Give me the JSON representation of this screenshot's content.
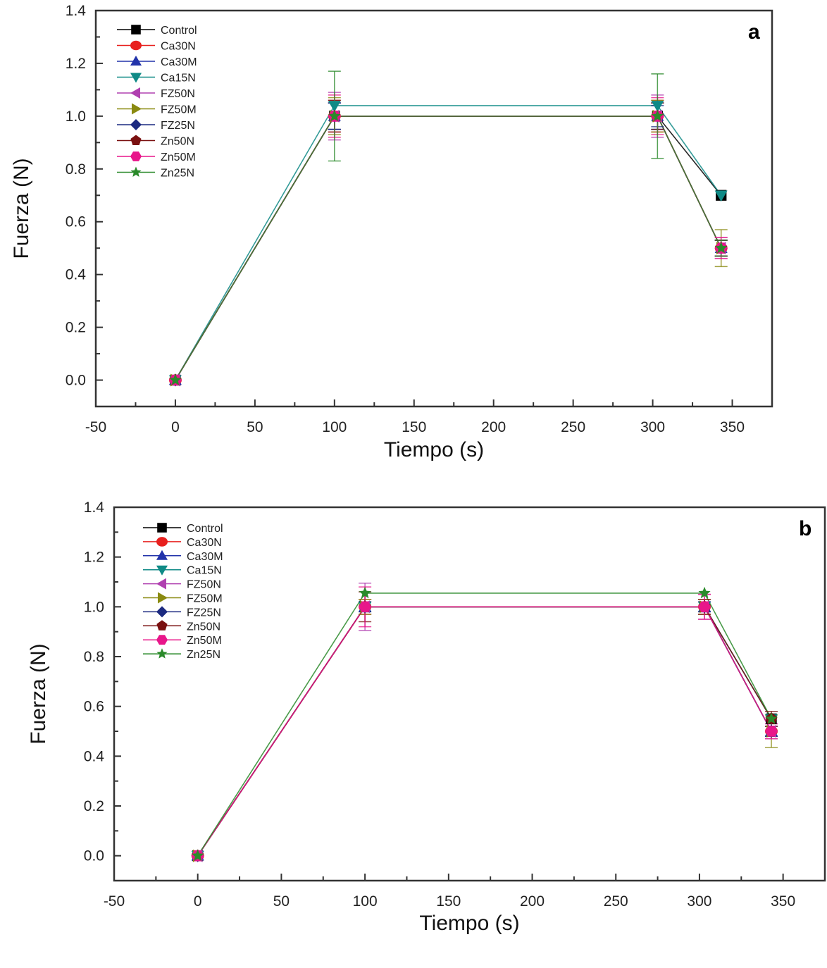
{
  "chart_data": [
    {
      "type": "line",
      "panel_label": "a",
      "title": "",
      "xlabel": "Tiempo (s)",
      "ylabel": "Fuerza (N)",
      "xlim": [
        -50,
        375
      ],
      "ylim": [
        -0.1,
        1.4
      ],
      "xticks": [
        -50,
        0,
        50,
        100,
        150,
        200,
        250,
        300,
        350
      ],
      "xtick_labels": [
        "-50",
        "0",
        "50",
        "100",
        "150",
        "200",
        "250",
        "300",
        "350"
      ],
      "yticks": [
        0.0,
        0.2,
        0.4,
        0.6,
        0.8,
        1.0,
        1.2,
        1.4
      ],
      "ytick_labels": [
        "0.0",
        "0.2",
        "0.4",
        "0.6",
        "0.8",
        "1.0",
        "1.2",
        "1.4"
      ],
      "grid": false,
      "legend_position": "top-left",
      "x": [
        0,
        100,
        303,
        343
      ],
      "series": [
        {
          "name": "Control",
          "color": "#000000",
          "marker": "square",
          "values": [
            0,
            1.0,
            1.0,
            0.7
          ],
          "errors": [
            0,
            0.05,
            0.05,
            0
          ]
        },
        {
          "name": "Ca30N",
          "color": "#e8201e",
          "marker": "circle",
          "values": [
            0,
            1.0,
            1.0,
            0.5
          ],
          "errors": [
            0,
            0.06,
            0.06,
            0.03
          ]
        },
        {
          "name": "Ca30M",
          "color": "#2233aa",
          "marker": "triangle-up",
          "values": [
            0,
            1.0,
            1.0,
            0.5
          ],
          "errors": [
            0,
            0.05,
            0.05,
            0.03
          ]
        },
        {
          "name": "Ca15N",
          "color": "#0f8a86",
          "marker": "triangle-down",
          "values": [
            0,
            1.04,
            1.04,
            0.7
          ],
          "errors": [
            0,
            0,
            0,
            0
          ]
        },
        {
          "name": "FZ50N",
          "color": "#b040b0",
          "marker": "triangle-left",
          "values": [
            0,
            1.0,
            1.0,
            0.5
          ],
          "errors": [
            0,
            0.09,
            0.08,
            0.04
          ]
        },
        {
          "name": "FZ50M",
          "color": "#8a8a10",
          "marker": "triangle-right",
          "values": [
            0,
            1.0,
            1.0,
            0.5
          ],
          "errors": [
            0,
            0.07,
            0.06,
            0.07
          ]
        },
        {
          "name": "FZ25N",
          "color": "#1c2a80",
          "marker": "diamond",
          "values": [
            0,
            1.0,
            1.0,
            0.5
          ],
          "errors": [
            0,
            0.05,
            0.04,
            0.03
          ]
        },
        {
          "name": "Zn50N",
          "color": "#7a1010",
          "marker": "pentagon",
          "values": [
            0,
            1.0,
            1.0,
            0.5
          ],
          "errors": [
            0,
            0.06,
            0.05,
            0.03
          ]
        },
        {
          "name": "Zn50M",
          "color": "#e8168a",
          "marker": "hexagon",
          "values": [
            0,
            1.0,
            1.0,
            0.5
          ],
          "errors": [
            0,
            0.08,
            0.07,
            0.04
          ]
        },
        {
          "name": "Zn25N",
          "color": "#2a8a2a",
          "marker": "star",
          "values": [
            0,
            1.0,
            1.0,
            0.5
          ],
          "errors": [
            0,
            0.17,
            0.16,
            0.03
          ]
        }
      ]
    },
    {
      "type": "line",
      "panel_label": "b",
      "title": "",
      "xlabel": "Tiempo (s)",
      "ylabel": "Fuerza (N)",
      "xlim": [
        -50,
        375
      ],
      "ylim": [
        -0.1,
        1.4
      ],
      "xticks": [
        -50,
        0,
        50,
        100,
        150,
        200,
        250,
        300,
        350
      ],
      "xtick_labels": [
        "-50",
        "0",
        "50",
        "100",
        "150",
        "200",
        "250",
        "300",
        "350"
      ],
      "yticks": [
        0.0,
        0.2,
        0.4,
        0.6,
        0.8,
        1.0,
        1.2,
        1.4
      ],
      "ytick_labels": [
        "0.0",
        "0.2",
        "0.4",
        "0.6",
        "0.8",
        "1.0",
        "1.2",
        "1.4"
      ],
      "grid": false,
      "legend_position": "top-left",
      "x": [
        0,
        100,
        303,
        343
      ],
      "series": [
        {
          "name": "Control",
          "color": "#000000",
          "marker": "square",
          "values": [
            0,
            1.0,
            1.0,
            0.55
          ],
          "errors": [
            0,
            0.03,
            0.03,
            0
          ]
        },
        {
          "name": "Ca30N",
          "color": "#e8201e",
          "marker": "circle",
          "values": [
            0,
            1.0,
            1.0,
            0.5
          ],
          "errors": [
            0,
            0.03,
            0.03,
            0.02
          ]
        },
        {
          "name": "Ca30M",
          "color": "#2233aa",
          "marker": "triangle-up",
          "values": [
            0,
            1.0,
            1.0,
            0.5
          ],
          "errors": [
            0,
            0.02,
            0.02,
            0.02
          ]
        },
        {
          "name": "Ca15N",
          "color": "#0f8a86",
          "marker": "triangle-down",
          "values": [
            0,
            1.0,
            1.0,
            0.55
          ],
          "errors": [
            0,
            0,
            0,
            0
          ]
        },
        {
          "name": "FZ50N",
          "color": "#b040b0",
          "marker": "triangle-left",
          "values": [
            0,
            1.0,
            1.0,
            0.5
          ],
          "errors": [
            0,
            0.095,
            0.05,
            0.03
          ]
        },
        {
          "name": "FZ50M",
          "color": "#8a8a10",
          "marker": "triangle-right",
          "values": [
            0,
            1.0,
            1.0,
            0.5
          ],
          "errors": [
            0,
            0.03,
            0.03,
            0.065
          ]
        },
        {
          "name": "FZ25N",
          "color": "#1c2a80",
          "marker": "diamond",
          "values": [
            0,
            1.0,
            1.0,
            0.5
          ],
          "errors": [
            0,
            0.02,
            0.02,
            0.02
          ]
        },
        {
          "name": "Zn50N",
          "color": "#7a1010",
          "marker": "pentagon",
          "values": [
            0,
            1.0,
            1.0,
            0.55
          ],
          "errors": [
            0,
            0.06,
            0.03,
            0.03
          ]
        },
        {
          "name": "Zn50M",
          "color": "#e8168a",
          "marker": "hexagon",
          "values": [
            0,
            1.0,
            1.0,
            0.5
          ],
          "errors": [
            0,
            0.08,
            0.05,
            0.03
          ]
        },
        {
          "name": "Zn25N",
          "color": "#2a8a2a",
          "marker": "star",
          "values": [
            0,
            1.055,
            1.055,
            0.55
          ],
          "errors": [
            0,
            0,
            0,
            0
          ]
        }
      ]
    }
  ]
}
